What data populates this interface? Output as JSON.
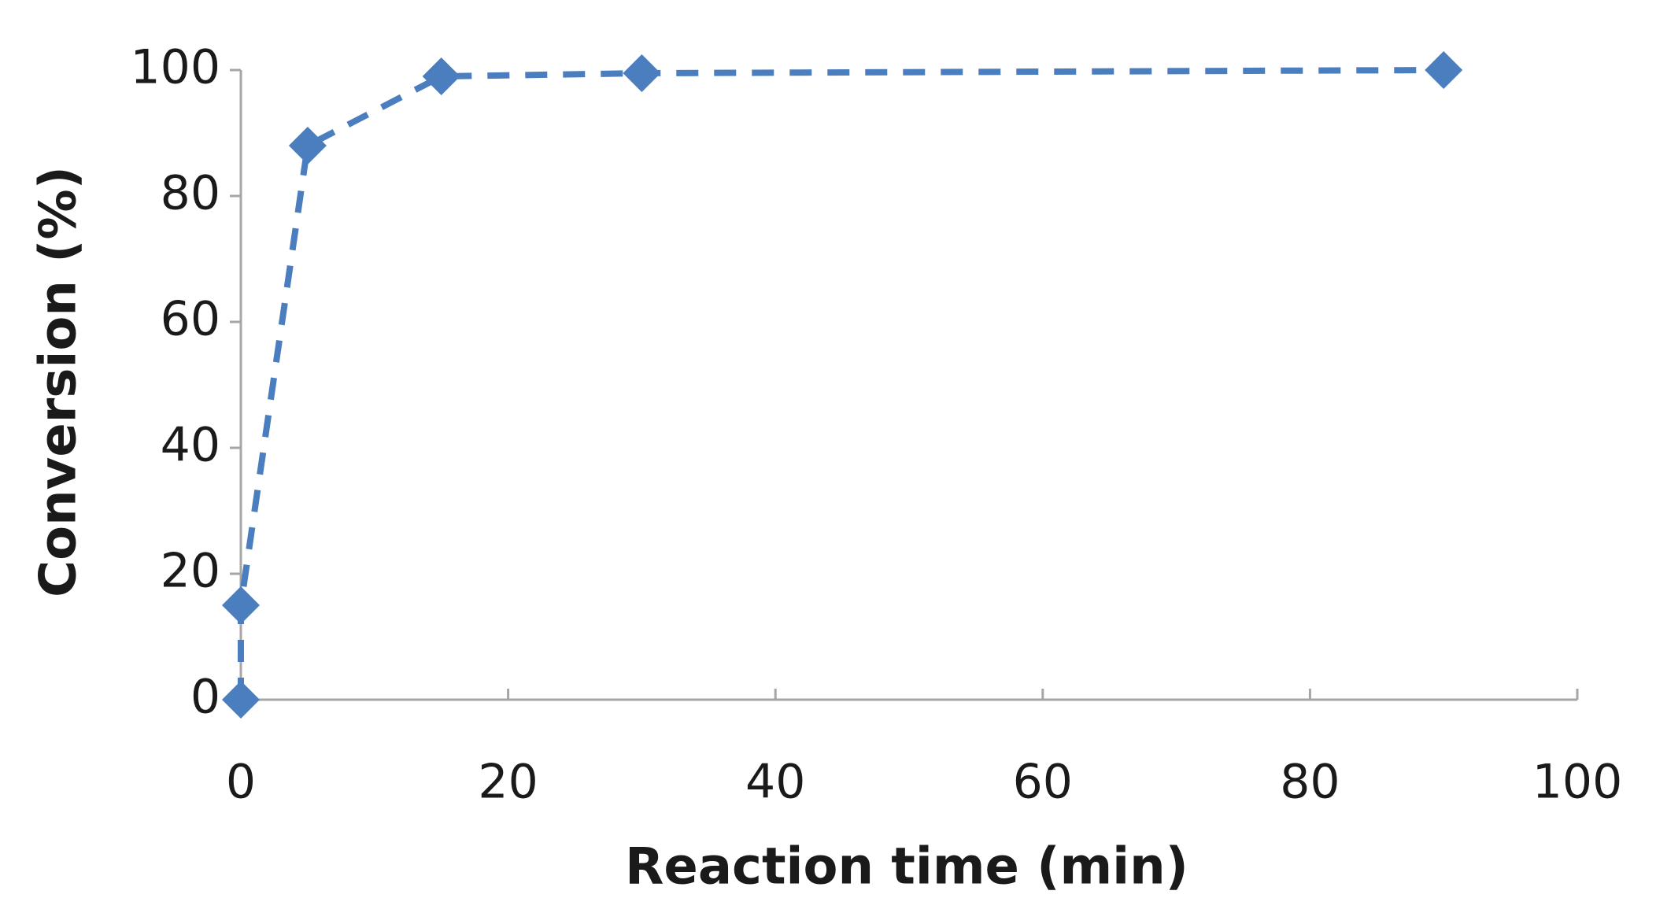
{
  "chart_data": {
    "type": "line",
    "x_label": "Reaction time (min)",
    "y_label": "Conversion (%)",
    "x": [
      0,
      0,
      5,
      15,
      30,
      90
    ],
    "values": [
      0,
      15,
      88,
      99,
      99.5,
      100
    ],
    "color": "#4a7ebf",
    "line_style": "dashed",
    "marker": "diamond",
    "xlim": [
      0,
      100
    ],
    "xticks": [
      0,
      20,
      40,
      60,
      80,
      100
    ],
    "ylim": [
      0,
      100
    ],
    "yticks": [
      0,
      20,
      40,
      60,
      80,
      100
    ],
    "grid": false
  }
}
